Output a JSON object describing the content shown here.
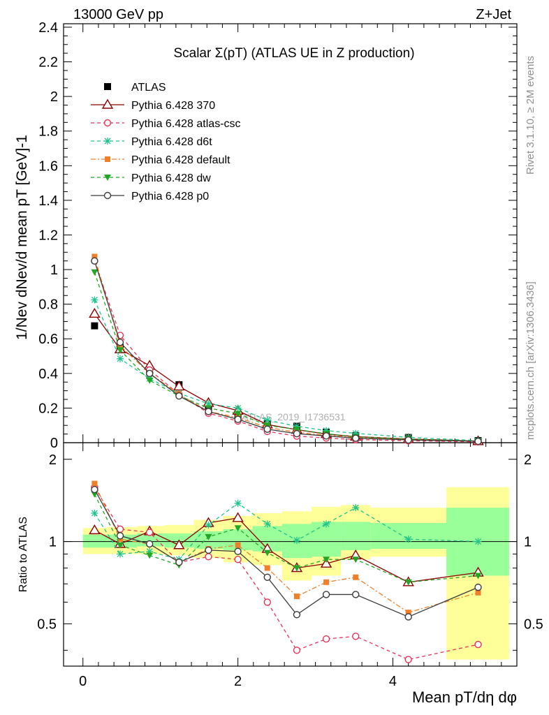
{
  "header": {
    "left": "13000 GeV pp",
    "right": "Z+Jet"
  },
  "side_labels": {
    "upper": "Rivet 3.1.10, ≥ 2M events",
    "lower": "mcplots.cern.ch [arXiv:1306.3436]"
  },
  "chart_data": [
    {
      "type": "line",
      "panel": "main",
      "title": "Scalar Σ(pT) (ATLAS UE in Z production)",
      "xlabel": "Mean pT/dη dφ",
      "ylabel": "1/Nev dNev/d mean pT [GeV]-1",
      "xlim": [
        -0.25,
        5.6
      ],
      "ylim": [
        0,
        2.42
      ],
      "yticks": [
        0,
        0.2,
        0.4,
        0.6,
        0.8,
        1,
        1.2,
        1.4,
        1.6,
        1.8,
        2,
        2.2,
        2.4
      ],
      "ytick_labels": [
        "0",
        "0.2",
        "0.4",
        "0.6",
        "0.8",
        "1",
        "1.2",
        "1.4",
        "1.6",
        "1.8",
        "2",
        "2.2",
        "2.4"
      ],
      "watermark": "ATLAS_2019_I1736531",
      "legend_position": "top-left",
      "x": [
        0.15,
        0.48,
        0.86,
        1.24,
        1.62,
        2.0,
        2.38,
        2.76,
        3.14,
        3.52,
        4.2,
        5.1
      ],
      "series": [
        {
          "name": "ATLAS",
          "color": "#000000",
          "marker": "square",
          "dash": "none",
          "values": [
            0.675,
            0.55,
            0.41,
            0.335,
            0.195,
            0.15,
            0.11,
            0.095,
            0.06,
            0.04,
            0.03,
            0.012
          ]
        },
        {
          "name": "Pythia 6.428 370",
          "color": "#8b0000",
          "marker": "triangle-open",
          "dash": "solid",
          "values": [
            0.745,
            0.54,
            0.445,
            0.325,
            0.23,
            0.185,
            0.105,
            0.075,
            0.05,
            0.035,
            0.021,
            0.009
          ]
        },
        {
          "name": "Pythia 6.428 atlas-csc",
          "color": "#e8335a",
          "marker": "circle-open",
          "dash": "dashed",
          "values": [
            1.05,
            0.62,
            0.42,
            0.28,
            0.17,
            0.125,
            0.065,
            0.038,
            0.027,
            0.018,
            0.011,
            0.005
          ]
        },
        {
          "name": "Pythia 6.428 d6t",
          "color": "#1fc48a",
          "marker": "star",
          "dash": "dashed",
          "values": [
            0.825,
            0.485,
            0.37,
            0.285,
            0.225,
            0.2,
            0.13,
            0.095,
            0.07,
            0.054,
            0.031,
            0.012
          ]
        },
        {
          "name": "Pythia 6.428 default",
          "color": "#f07f2a",
          "marker": "square-small",
          "dash": "dashdot",
          "values": [
            1.075,
            0.56,
            0.4,
            0.28,
            0.18,
            0.145,
            0.088,
            0.06,
            0.043,
            0.03,
            0.017,
            0.008
          ]
        },
        {
          "name": "Pythia 6.428 dw",
          "color": "#23a623",
          "marker": "triangle-down",
          "dash": "dashed",
          "values": [
            0.985,
            0.535,
            0.36,
            0.27,
            0.2,
            0.168,
            0.1,
            0.076,
            0.052,
            0.034,
            0.021,
            0.009
          ]
        },
        {
          "name": "Pythia 6.428 p0",
          "color": "#3a3a3a",
          "marker": "circle-open",
          "dash": "solid",
          "values": [
            1.05,
            0.58,
            0.4,
            0.27,
            0.18,
            0.135,
            0.078,
            0.052,
            0.039,
            0.026,
            0.016,
            0.008
          ]
        }
      ]
    },
    {
      "type": "line",
      "panel": "ratio",
      "xlabel": "Mean pT/dη dφ",
      "ylabel": "Ratio to ATLAS",
      "xlim": [
        -0.25,
        5.6
      ],
      "ylim": [
        0.35,
        2.3
      ],
      "log_y": true,
      "xticks": [
        0,
        2,
        4
      ],
      "xtick_labels": [
        "0",
        "2",
        "4"
      ],
      "yticks": [
        0.5,
        1,
        2
      ],
      "ytick_labels": [
        "0.5",
        "1",
        "2"
      ],
      "bands": {
        "bin_edges": [
          0.0,
          0.3,
          0.7,
          1.05,
          1.43,
          1.81,
          2.19,
          2.57,
          2.95,
          3.33,
          3.71,
          4.69,
          5.5
        ],
        "yellow_low": [
          0.9,
          0.9,
          0.9,
          0.89,
          0.87,
          0.84,
          0.82,
          0.72,
          0.75,
          0.86,
          0.88,
          0.37
        ],
        "yellow_high": [
          1.12,
          1.13,
          1.14,
          1.15,
          1.2,
          1.24,
          1.27,
          1.29,
          1.34,
          1.36,
          1.33,
          1.58
        ],
        "green_low": [
          0.95,
          0.95,
          0.96,
          0.95,
          0.94,
          0.93,
          0.92,
          0.87,
          0.88,
          0.93,
          0.94,
          0.75
        ],
        "green_high": [
          1.06,
          1.06,
          1.07,
          1.07,
          1.09,
          1.11,
          1.14,
          1.16,
          1.18,
          1.18,
          1.17,
          1.33
        ]
      },
      "series": [
        {
          "name": "Pythia 6.428 370",
          "values": [
            1.1,
            0.98,
            1.09,
            0.97,
            1.17,
            1.22,
            0.94,
            0.8,
            0.83,
            0.89,
            0.71,
            0.77
          ]
        },
        {
          "name": "Pythia 6.428 atlas-csc",
          "values": [
            1.58,
            1.11,
            1.08,
            0.84,
            0.88,
            0.86,
            0.6,
            0.4,
            0.44,
            0.45,
            0.37,
            0.42
          ]
        },
        {
          "name": "Pythia 6.428 d6t",
          "values": [
            1.27,
            0.9,
            0.92,
            0.86,
            1.15,
            1.38,
            1.16,
            1.01,
            1.16,
            1.33,
            1.02,
            1.0
          ]
        },
        {
          "name": "Pythia 6.428 default",
          "values": [
            1.63,
            1.02,
            0.98,
            0.84,
            0.94,
            0.97,
            0.8,
            0.63,
            0.71,
            0.74,
            0.55,
            0.65
          ]
        },
        {
          "name": "Pythia 6.428 dw",
          "values": [
            1.49,
            0.97,
            0.89,
            0.82,
            1.04,
            1.12,
            0.91,
            0.8,
            0.86,
            0.86,
            0.71,
            0.75
          ]
        },
        {
          "name": "Pythia 6.428 p0",
          "values": [
            1.55,
            1.05,
            0.98,
            0.84,
            0.93,
            0.92,
            0.74,
            0.54,
            0.64,
            0.64,
            0.53,
            0.68
          ]
        }
      ]
    }
  ]
}
